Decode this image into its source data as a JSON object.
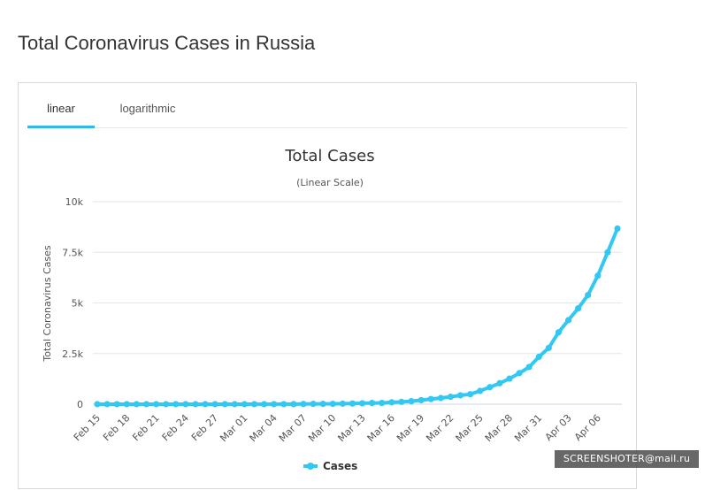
{
  "page": {
    "title": "Total Coronavirus Cases in Russia"
  },
  "tabs": [
    {
      "label": "linear",
      "active": true
    },
    {
      "label": "logarithmic",
      "active": false
    }
  ],
  "colors": {
    "accent": "#2fb8e8",
    "series": "#33c8f2",
    "grid": "#e6e6e6"
  },
  "watermark": "SCREENSHOTER@mail.ru",
  "chart_data": {
    "type": "line",
    "title": "Total Cases",
    "subtitle": "(Linear Scale)",
    "ylabel": "Total Coronavirus Cases",
    "xlabel": "",
    "ylim": [
      0,
      10000
    ],
    "y_ticks": [
      0,
      2500,
      5000,
      7500,
      10000
    ],
    "y_tick_labels": [
      "0",
      "2.5k",
      "5k",
      "7.5k",
      "10k"
    ],
    "grid": true,
    "legend_position": "bottom-center",
    "x": [
      "Feb 15",
      "Feb 16",
      "Feb 17",
      "Feb 18",
      "Feb 19",
      "Feb 20",
      "Feb 21",
      "Feb 22",
      "Feb 23",
      "Feb 24",
      "Feb 25",
      "Feb 26",
      "Feb 27",
      "Feb 28",
      "Feb 29",
      "Mar 01",
      "Mar 02",
      "Mar 03",
      "Mar 04",
      "Mar 05",
      "Mar 06",
      "Mar 07",
      "Mar 08",
      "Mar 09",
      "Mar 10",
      "Mar 11",
      "Mar 12",
      "Mar 13",
      "Mar 14",
      "Mar 15",
      "Mar 16",
      "Mar 17",
      "Mar 18",
      "Mar 19",
      "Mar 20",
      "Mar 21",
      "Mar 22",
      "Mar 23",
      "Mar 24",
      "Mar 25",
      "Mar 26",
      "Mar 27",
      "Mar 28",
      "Mar 29",
      "Mar 30",
      "Mar 31",
      "Apr 01",
      "Apr 02",
      "Apr 03",
      "Apr 04",
      "Apr 05",
      "Apr 06",
      "Apr 07",
      "Apr 08"
    ],
    "x_tick_labels": [
      "Feb 15",
      "Feb 18",
      "Feb 21",
      "Feb 24",
      "Feb 27",
      "Mar 01",
      "Mar 04",
      "Mar 07",
      "Mar 10",
      "Mar 13",
      "Mar 16",
      "Mar 19",
      "Mar 22",
      "Mar 25",
      "Mar 28",
      "Mar 31",
      "Apr 03",
      "Apr 06"
    ],
    "series": [
      {
        "name": "Cases",
        "values": [
          2,
          2,
          2,
          2,
          2,
          2,
          2,
          2,
          2,
          2,
          2,
          2,
          2,
          2,
          2,
          2,
          3,
          3,
          3,
          3,
          4,
          10,
          17,
          17,
          20,
          28,
          34,
          45,
          59,
          63,
          93,
          114,
          147,
          199,
          253,
          306,
          367,
          438,
          495,
          658,
          840,
          1036,
          1264,
          1534,
          1836,
          2337,
          2777,
          3548,
          4149,
          4731,
          5389,
          6343,
          7497,
          8672
        ]
      }
    ]
  }
}
